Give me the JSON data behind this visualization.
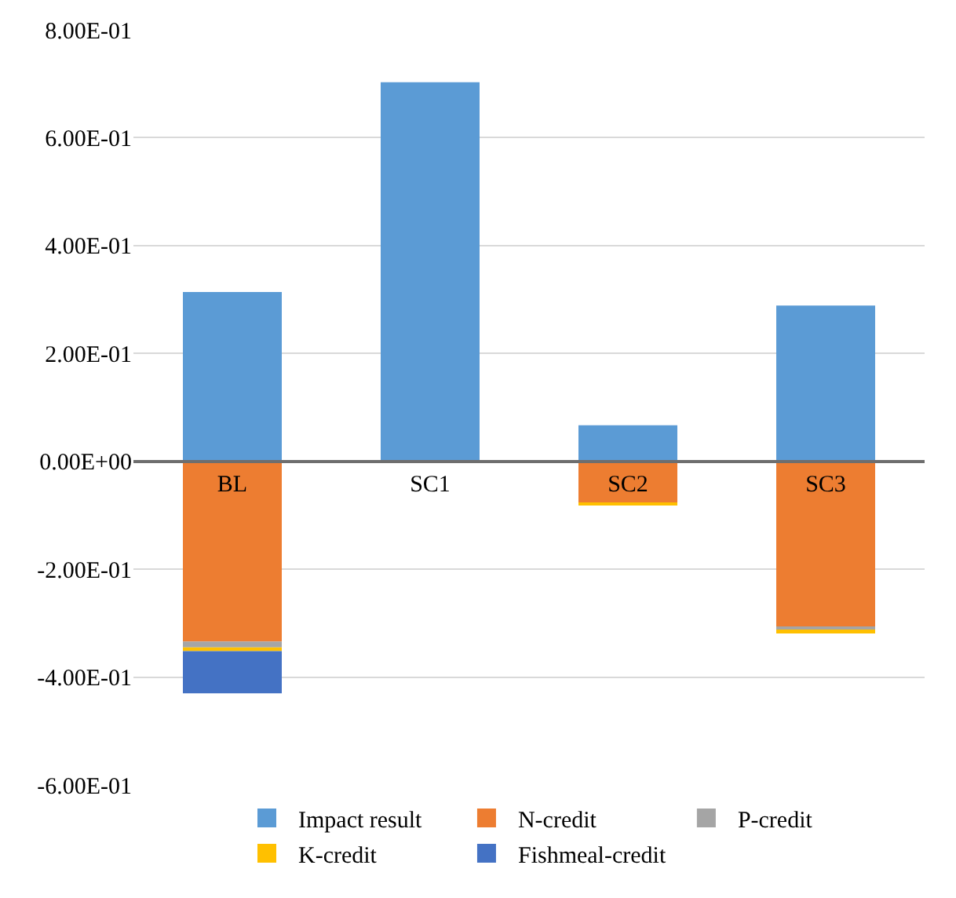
{
  "chart_data": {
    "type": "bar",
    "stacked": true,
    "categories": [
      "BL",
      "SC1",
      "SC2",
      "SC3"
    ],
    "series": [
      {
        "name": "Impact result",
        "color": "#5b9bd5",
        "values": [
          0.314,
          0.703,
          0.067,
          0.289
        ]
      },
      {
        "name": "N-credit",
        "color": "#ed7d31",
        "values": [
          -0.334,
          null,
          -0.078,
          -0.306
        ]
      },
      {
        "name": "P-credit",
        "color": "#a5a5a5",
        "values": [
          -0.011,
          null,
          null,
          -0.008
        ]
      },
      {
        "name": "K-credit",
        "color": "#ffc000",
        "values": [
          -0.007,
          null,
          -0.003,
          -0.005
        ]
      },
      {
        "name": "Fishmeal-credit",
        "color": "#4472c4",
        "values": [
          -0.078,
          null,
          null,
          null
        ]
      }
    ],
    "ylim": [
      -0.6,
      0.8
    ],
    "yticks": [
      {
        "value": -0.6,
        "label": "-6.00E-01"
      },
      {
        "value": -0.4,
        "label": "-4.00E-01"
      },
      {
        "value": -0.2,
        "label": "-2.00E-01"
      },
      {
        "value": 0,
        "label": "0.00E+00"
      },
      {
        "value": 0.2,
        "label": "2.00E-01"
      },
      {
        "value": 0.4,
        "label": "4.00E-01"
      },
      {
        "value": 0.6,
        "label": "6.00E-01"
      },
      {
        "value": 0.8,
        "label": "8.00E-01"
      }
    ],
    "grid": "y",
    "legend": "bottom"
  }
}
